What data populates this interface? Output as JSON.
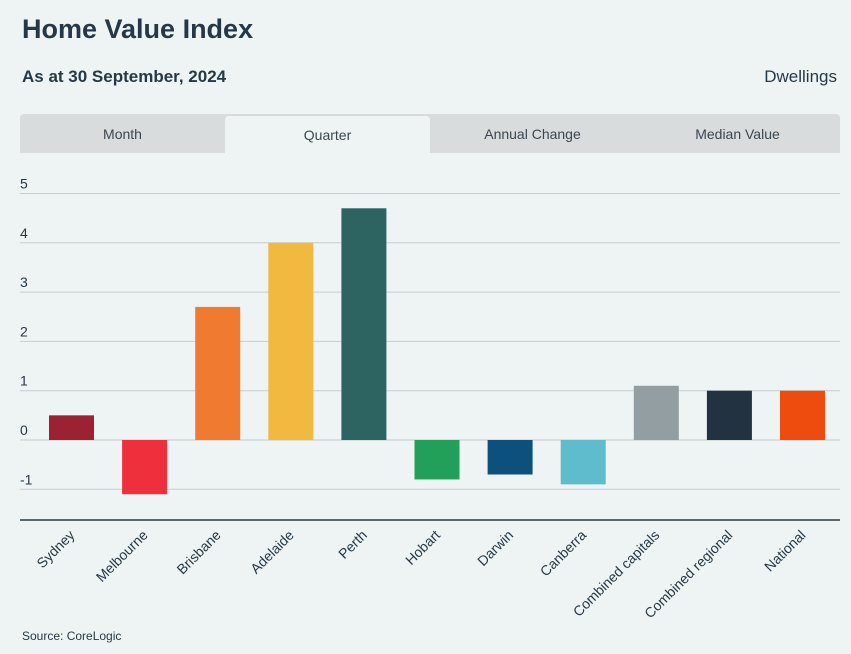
{
  "header": {
    "title": "Home Value Index",
    "subtitle": "As at 30 September, 2024",
    "right_label": "Dwellings"
  },
  "tabs": [
    {
      "label": "Month",
      "active": false
    },
    {
      "label": "Quarter",
      "active": true
    },
    {
      "label": "Annual Change",
      "active": false
    },
    {
      "label": "Median Value",
      "active": false
    }
  ],
  "footer": {
    "source": "Source: CoreLogic"
  },
  "chart_data": {
    "type": "bar",
    "title": "",
    "xlabel": "",
    "ylabel": "",
    "ylim": [
      -1.6,
      5.4
    ],
    "yticks": [
      -1,
      0,
      1,
      2,
      3,
      4,
      5
    ],
    "grid": true,
    "categories": [
      "Sydney",
      "Melbourne",
      "Brisbane",
      "Adelaide",
      "Perth",
      "Hobart",
      "Darwin",
      "Canberra",
      "Combined capitals",
      "Combined regional",
      "National"
    ],
    "values": [
      0.5,
      -1.1,
      2.7,
      4.0,
      4.7,
      -0.8,
      -0.7,
      -0.9,
      1.1,
      1.0,
      1.0
    ],
    "colors": [
      "#9b2230",
      "#ee2f3c",
      "#f07b30",
      "#f1b940",
      "#2d6461",
      "#22a05a",
      "#0d507d",
      "#5fbccc",
      "#939ea2",
      "#223241",
      "#ee4b0f"
    ]
  }
}
